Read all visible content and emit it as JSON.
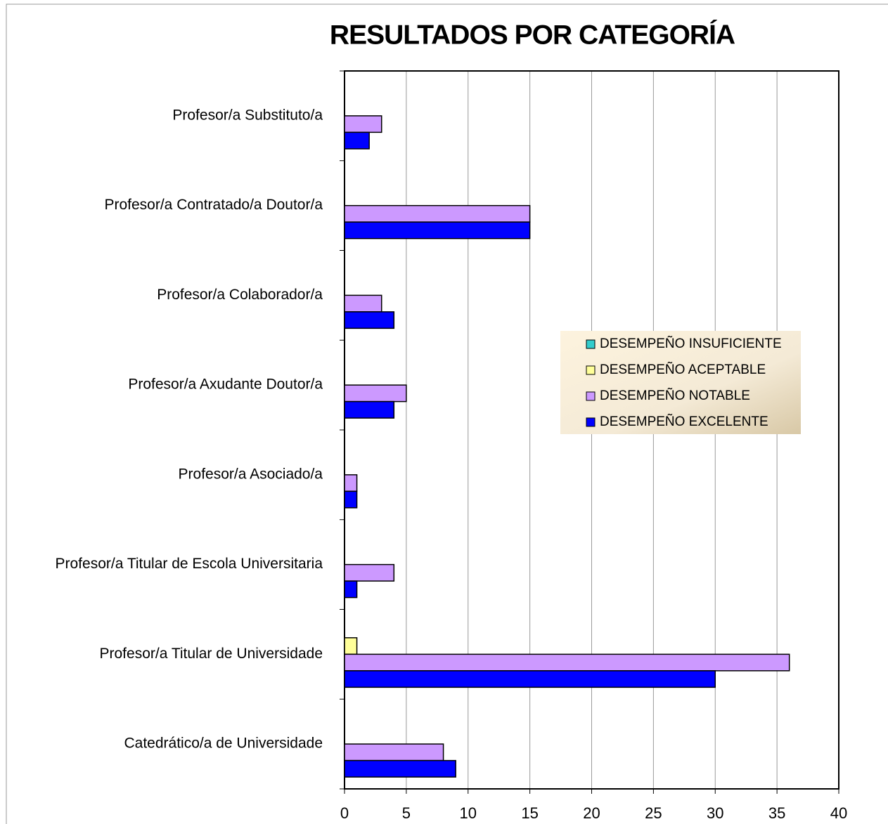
{
  "chart_data": {
    "type": "hbar",
    "title": "RESULTADOS POR CATEGORÍA",
    "categories": [
      "Profesor/a Substituto/a",
      "Profesor/a Contratado/a Doutor/a",
      "Profesor/a Colaborador/a",
      "Profesor/a Axudante Doutor/a",
      "Profesor/a Asociado/a",
      "Profesor/a Titular de Escola Universitaria",
      "Profesor/a Titular de Universidade",
      "Catedrático/a de Universidade"
    ],
    "series": [
      {
        "name": "DESEMPEÑO INSUFICIENTE",
        "color": "#33cccc",
        "values": [
          0,
          0,
          0,
          0,
          0,
          0,
          0,
          0
        ]
      },
      {
        "name": "DESEMPEÑO ACEPTABLE",
        "color": "#ffff99",
        "values": [
          0,
          0,
          0,
          0,
          0,
          0,
          1,
          0
        ]
      },
      {
        "name": "DESEMPEÑO NOTABLE",
        "color": "#cc99ff",
        "values": [
          3,
          15,
          3,
          5,
          1,
          4,
          36,
          8
        ]
      },
      {
        "name": "DESEMPEÑO EXCELENTE",
        "color": "#0000ff",
        "values": [
          2,
          15,
          4,
          4,
          1,
          1,
          30,
          9
        ]
      }
    ],
    "xlim": [
      0,
      40
    ],
    "xticks": [
      0,
      5,
      10,
      15,
      20,
      25,
      30,
      35,
      40
    ],
    "grid": true,
    "legend": "right"
  }
}
